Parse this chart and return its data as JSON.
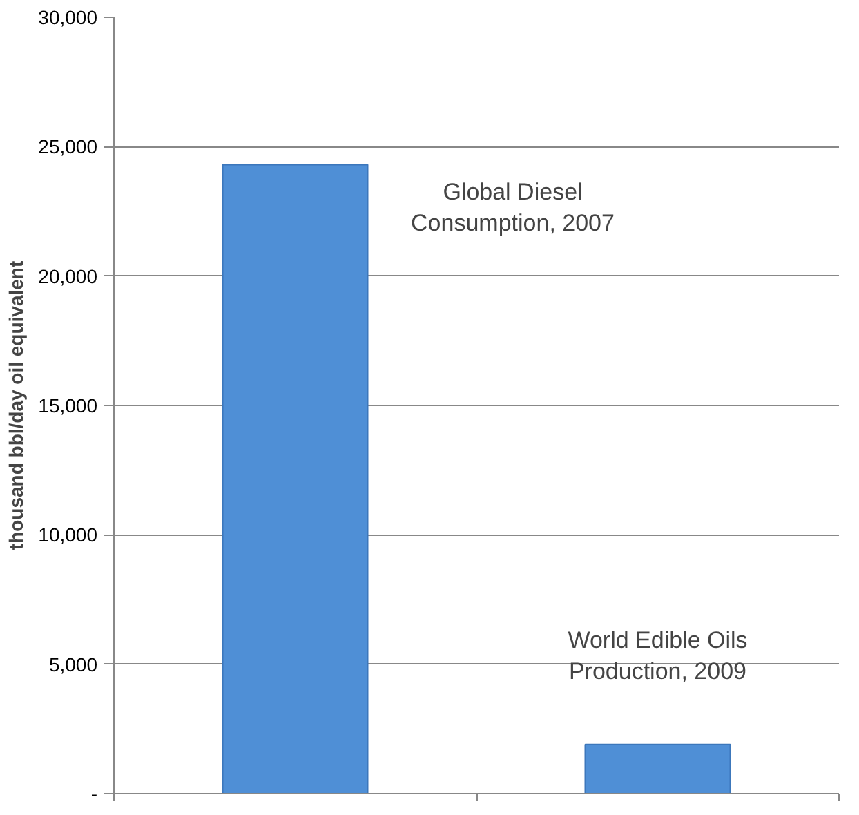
{
  "chart_data": {
    "type": "bar",
    "ylabel": "thousand bbl/day oil equivalent",
    "categories": [
      null,
      null
    ],
    "values": [
      24300,
      1900
    ],
    "color": "#4f8fd6",
    "ylim": [
      0,
      30000
    ],
    "yticks": [
      {
        "value": 0,
        "label": "-"
      },
      {
        "value": 5000,
        "label": "5,000"
      },
      {
        "value": 10000,
        "label": "10,000"
      },
      {
        "value": 15000,
        "label": "15,000"
      },
      {
        "value": 20000,
        "label": "20,000"
      },
      {
        "value": 25000,
        "label": "25,000"
      },
      {
        "value": 30000,
        "label": "30,000"
      }
    ],
    "grid": "y",
    "annotations": [
      "Global Diesel\nConsumption, 2007",
      "World Edible Oils\nProduction, 2009"
    ]
  }
}
